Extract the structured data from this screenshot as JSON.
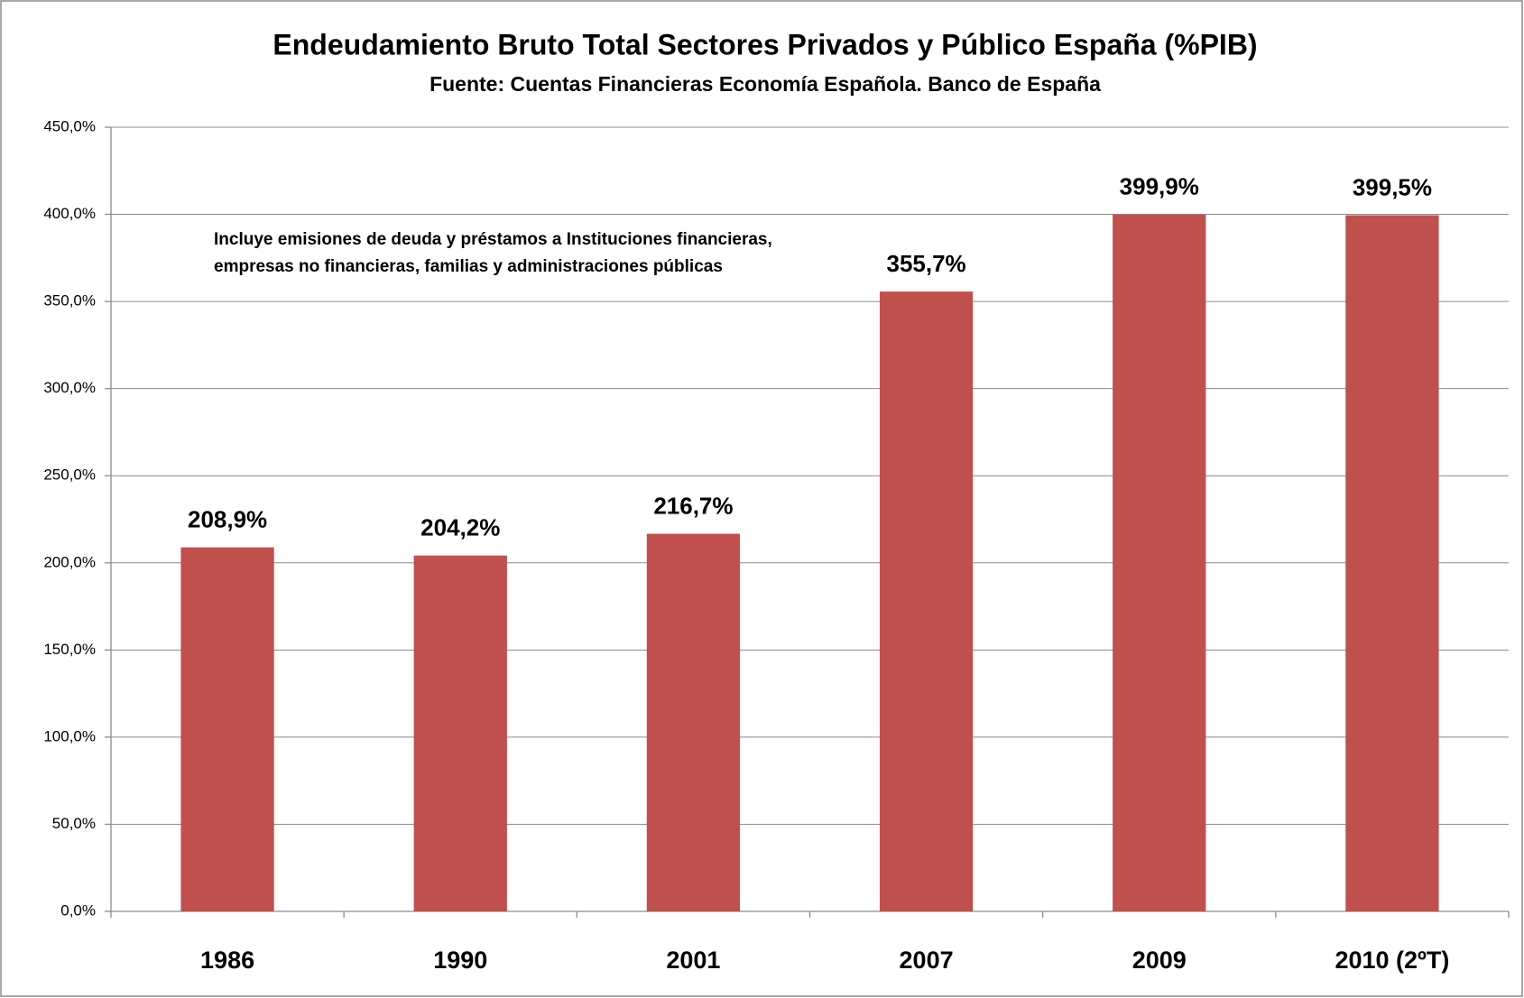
{
  "chart_data": {
    "type": "bar",
    "title": "Endeudamiento  Bruto Total Sectores Privados y Público  España (%PIB)",
    "subtitle": "Fuente: Cuentas Financieras Economía Española. Banco de España",
    "annotation": [
      "Incluye emisiones de deuda y préstamos a Instituciones financieras,",
      "empresas no financieras, familias y administraciones públicas"
    ],
    "categories": [
      "1986",
      "1990",
      "2001",
      "2007",
      "2009",
      "2010 (2ºT)"
    ],
    "values": [
      208.9,
      204.2,
      216.7,
      355.7,
      399.9,
      399.5
    ],
    "value_labels": [
      "208,9%",
      "204,2%",
      "216,7%",
      "355,7%",
      "399,9%",
      "399,5%"
    ],
    "color": "#c0504d",
    "ylim": [
      0,
      450
    ],
    "yticks": [
      {
        "value": 0,
        "label": "0,0%"
      },
      {
        "value": 50,
        "label": "50,0%"
      },
      {
        "value": 100,
        "label": "100,0%"
      },
      {
        "value": 150,
        "label": "150,0%"
      },
      {
        "value": 200,
        "label": "200,0%"
      },
      {
        "value": 250,
        "label": "250,0%"
      },
      {
        "value": 300,
        "label": "300,0%"
      },
      {
        "value": 350,
        "label": "350,0%"
      },
      {
        "value": 400,
        "label": "400,0%"
      },
      {
        "value": 450,
        "label": "450,0%"
      }
    ],
    "grid": true
  }
}
